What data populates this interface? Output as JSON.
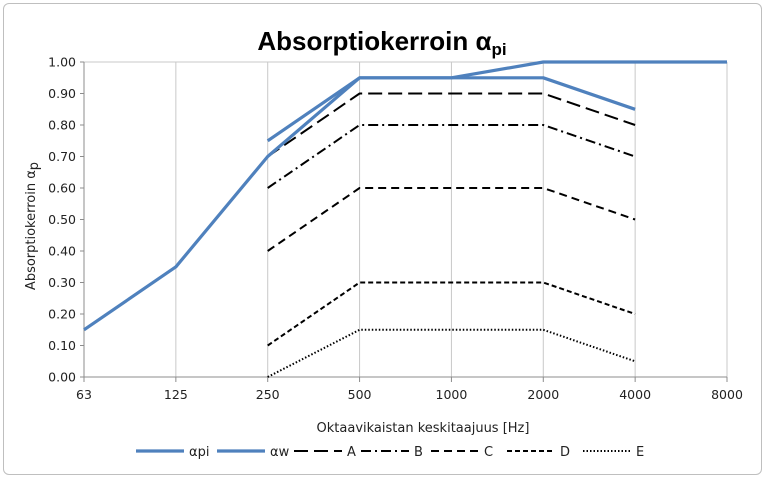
{
  "chart_data": {
    "type": "line",
    "title": "Absorptiokerroin α",
    "title_subscript": "pi",
    "xlabel": "Oktaavikaistan keskitaajuus [Hz]",
    "ylabel": "Absorptiokerroin α",
    "ylabel_subscript": "p",
    "categories": [
      "63",
      "125",
      "250",
      "500",
      "1000",
      "2000",
      "4000",
      "8000"
    ],
    "ylim": [
      0,
      1
    ],
    "yticks": [
      "0.00",
      "0.10",
      "0.20",
      "0.30",
      "0.40",
      "0.50",
      "0.60",
      "0.70",
      "0.80",
      "0.90",
      "1.00"
    ],
    "grid": "vertical",
    "legend_position": "bottom",
    "series": [
      {
        "name": "αpi",
        "color": "#4f81bd",
        "style": "solid",
        "values": [
          0.15,
          0.35,
          0.7,
          0.95,
          0.95,
          1.0,
          1.0,
          1.0
        ]
      },
      {
        "name": "αw",
        "color": "#4f81bd",
        "style": "solid",
        "values": [
          null,
          null,
          0.75,
          0.95,
          0.95,
          0.95,
          0.85,
          null
        ]
      },
      {
        "name": "A",
        "color": "#000000",
        "style": "longdash",
        "values": [
          null,
          null,
          0.7,
          0.9,
          0.9,
          0.9,
          0.8,
          null
        ]
      },
      {
        "name": "B",
        "color": "#000000",
        "style": "dashdot",
        "values": [
          null,
          null,
          0.6,
          0.8,
          0.8,
          0.8,
          0.7,
          null
        ]
      },
      {
        "name": "C",
        "color": "#000000",
        "style": "dash",
        "values": [
          null,
          null,
          0.4,
          0.6,
          0.6,
          0.6,
          0.5,
          null
        ]
      },
      {
        "name": "D",
        "color": "#000000",
        "style": "shortdash",
        "values": [
          null,
          null,
          0.1,
          0.3,
          0.3,
          0.3,
          0.2,
          null
        ]
      },
      {
        "name": "E",
        "color": "#000000",
        "style": "dot",
        "values": [
          null,
          null,
          0.0,
          0.15,
          0.15,
          0.15,
          0.05,
          null
        ]
      }
    ]
  }
}
